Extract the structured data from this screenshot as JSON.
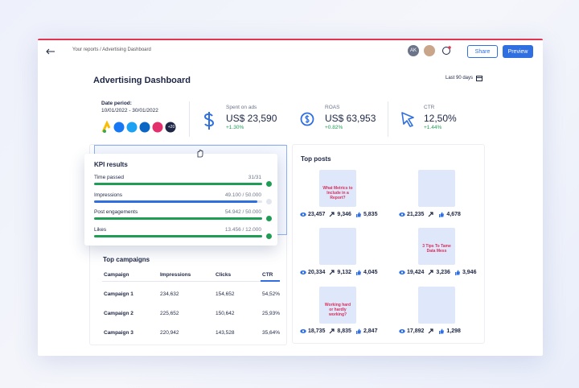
{
  "header": {
    "breadcrumb": "Your reports / Advertising Dashboard",
    "avatar": "AK",
    "share": "Share",
    "preview": "Preview"
  },
  "title": "Advertising Dashboard",
  "date_range": "Last 90 days",
  "date_period": {
    "label": "Date period:",
    "value": "10/01/2022 - 30/01/2022",
    "more_sources": "+20"
  },
  "metrics": [
    {
      "label": "Spent on ads",
      "value": "US$ 23,590",
      "change": "+1.30%"
    },
    {
      "label": "ROAS",
      "value": "US$ 63,953",
      "change": "+0.82%"
    },
    {
      "label": "CTR",
      "value": "12,50%",
      "change": "+1.44%"
    }
  ],
  "kpi": {
    "title": "KPI results",
    "rows": [
      {
        "label": "Time passed",
        "value": "31/31"
      },
      {
        "label": "Impressions",
        "value": "49.100 / 50.000"
      },
      {
        "label": "Post engagements",
        "value": "54.942 / 50.000"
      },
      {
        "label": "Likes",
        "value": "13.456 / 12.000"
      }
    ]
  },
  "campaigns": {
    "title": "Top campaigns",
    "columns": [
      "Campaign",
      "Impressions",
      "Clicks",
      "CTR"
    ],
    "rows": [
      [
        "Campaign 1",
        "234,632",
        "154,652",
        "54,52%"
      ],
      [
        "Campaign 2",
        "225,652",
        "150,642",
        "25,93%"
      ],
      [
        "Campaign 3",
        "220,942",
        "143,528",
        "35,64%"
      ]
    ]
  },
  "posts": {
    "title": "Top posts",
    "items": [
      {
        "thumbnail_text": "What Metrics to Include in a Report?",
        "views": "23,457",
        "shares": "9,346",
        "likes": "5,835"
      },
      {
        "views": "21,235",
        "likes": "4,678"
      },
      {
        "views": "20,334",
        "shares": "9,132",
        "likes": "4,045"
      },
      {
        "thumbnail_text": "3 Tips To Tame Data Mess",
        "views": "19,424",
        "shares": "3,236",
        "likes": "3,946"
      },
      {
        "thumbnail_text": "Working hard or hardly working?",
        "views": "18,735",
        "shares": "8,835",
        "likes": "2,847"
      },
      {
        "views": "17,892",
        "likes": "1,298"
      }
    ]
  }
}
